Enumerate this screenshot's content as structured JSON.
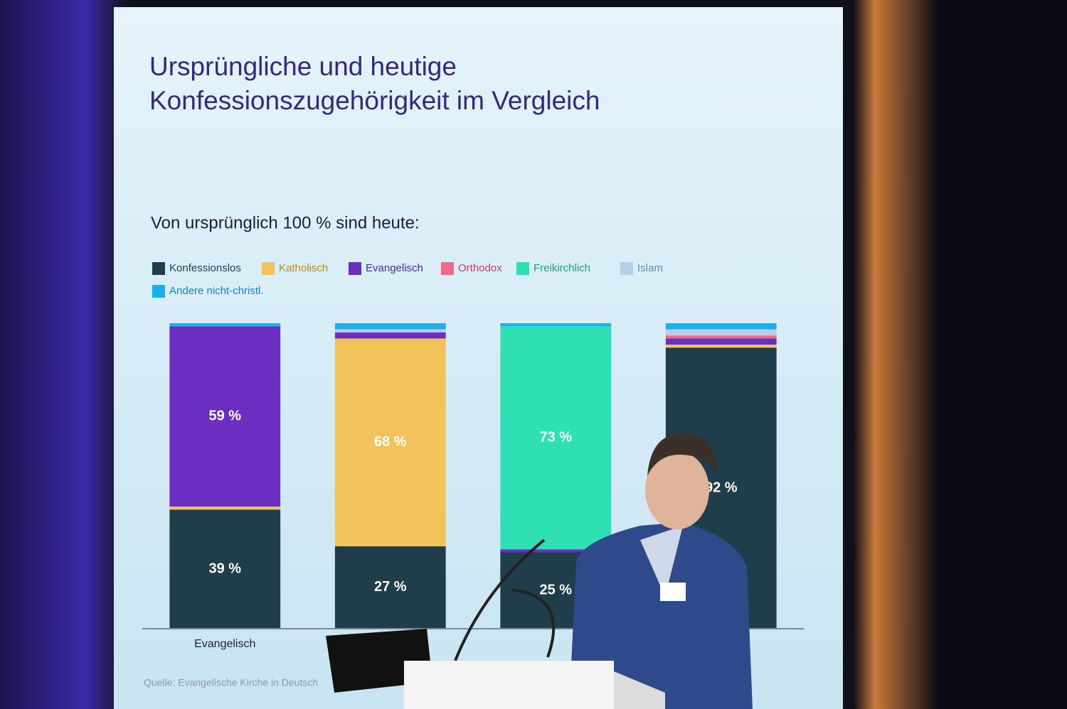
{
  "title": "Ursprüngliche und heutige Konfessionszugehörigkeit im Vergleich",
  "chart_data": {
    "type": "stacked_bar",
    "subtitle": "Von ursprünglich 100 % sind heute:",
    "source": "Quelle: Evangelische Kirche in Deutsch",
    "categories": [
      "Evangelisch",
      null,
      null,
      null
    ],
    "ylim": [
      0,
      100
    ],
    "series": [
      {
        "name": "Konfessionslos",
        "color": "#1f3d4a",
        "values": [
          39,
          27,
          25,
          92
        ],
        "value_labels": [
          "39 %",
          "27 %",
          "25 %",
          "92 %"
        ]
      },
      {
        "name": "Katholisch",
        "color": "#f2c35a",
        "values": [
          1,
          68,
          0,
          1
        ],
        "value_labels": [
          null,
          "68 %",
          null,
          null
        ]
      },
      {
        "name": "Evangelisch",
        "color": "#6a2fc0",
        "values": [
          59,
          2,
          1,
          2
        ],
        "value_labels": [
          "59 %",
          null,
          null,
          null
        ]
      },
      {
        "name": "Orthodox",
        "color": "#f06a8a",
        "values": [
          0,
          0,
          0,
          1
        ]
      },
      {
        "name": "Freikirchlich",
        "color": "#2fe0b5",
        "values": [
          0,
          0,
          73,
          0
        ],
        "value_labels": [
          null,
          null,
          "73 %",
          null
        ]
      },
      {
        "name": "Islam",
        "color": "#b8cfe8",
        "values": [
          0,
          1,
          0,
          2
        ]
      },
      {
        "name": "Andere nicht-christl.",
        "color": "#1ab0ef",
        "values": [
          1,
          2,
          1,
          2
        ]
      }
    ]
  }
}
